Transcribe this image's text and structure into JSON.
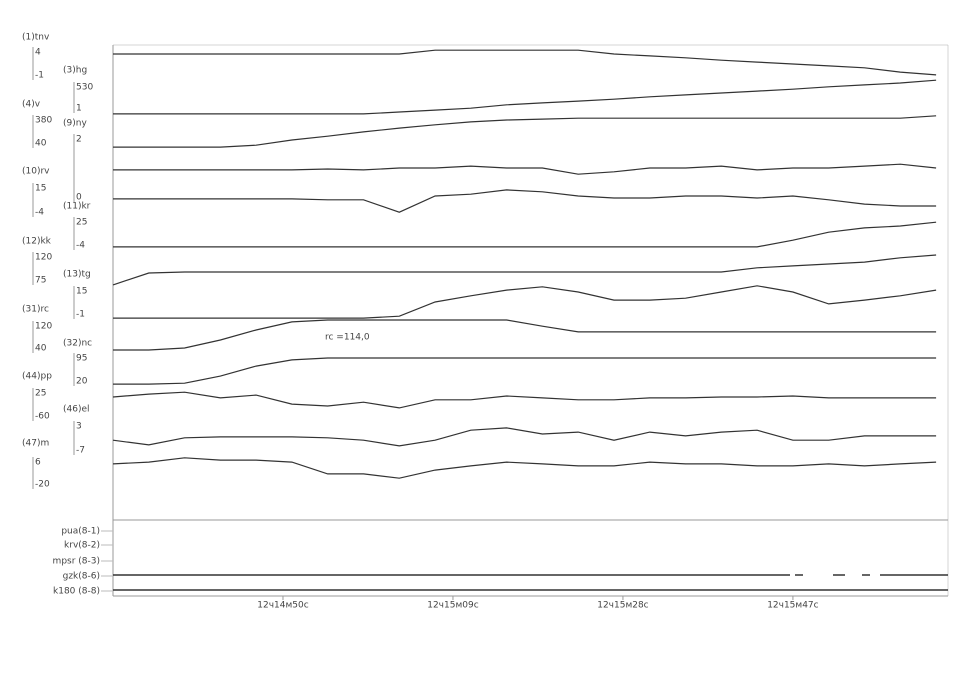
{
  "chart_data": {
    "type": "line",
    "color": "#333333",
    "xlim": [
      44071,
      44164
    ],
    "xticks": [
      {
        "value": 44090,
        "label": "12ч14м50с"
      },
      {
        "value": 44109,
        "label": "12ч15м09с"
      },
      {
        "value": 44128,
        "label": "12ч15м28с"
      },
      {
        "value": 44147,
        "label": "12ч15м47с"
      }
    ],
    "ylim": [
      0,
      100
    ],
    "x": [
      44071,
      44075,
      44079,
      44083,
      44087,
      44091,
      44095,
      44099,
      44103,
      44107,
      44111,
      44115,
      44119,
      44123,
      44127,
      44131,
      44135,
      44139,
      44143,
      44147,
      44151,
      44155,
      44159,
      44163
    ],
    "series": [
      {
        "name": "(1)tnv",
        "scale": [
          "4",
          "-1"
        ],
        "values": [
          98.1,
          98.1,
          98.1,
          98.1,
          98.1,
          98.1,
          98.1,
          98.1,
          98.1,
          98.9,
          98.9,
          98.9,
          98.9,
          98.9,
          98.1,
          97.7,
          97.3,
          96.8,
          96.4,
          96.0,
          95.6,
          95.2,
          94.3,
          93.7
        ]
      },
      {
        "name": "(3)hg",
        "scale": [
          "530",
          "1"
        ],
        "values": [
          85.5,
          85.5,
          85.5,
          85.5,
          85.5,
          85.5,
          85.5,
          85.5,
          85.9,
          86.3,
          86.7,
          87.4,
          87.8,
          88.2,
          88.6,
          89.1,
          89.5,
          89.9,
          90.3,
          90.7,
          91.2,
          91.6,
          92.0,
          92.6
        ]
      },
      {
        "name": "(4)v",
        "scale": [
          "380",
          "40"
        ],
        "values": [
          78.5,
          78.5,
          78.5,
          78.5,
          78.9,
          80.0,
          80.8,
          81.7,
          82.5,
          83.2,
          83.8,
          84.2,
          84.4,
          84.6,
          84.6,
          84.6,
          84.6,
          84.6,
          84.6,
          84.6,
          84.6,
          84.6,
          84.6,
          85.1
        ]
      },
      {
        "name": "(9)ny",
        "scale": [
          "2",
          "0"
        ],
        "values": [
          73.7,
          73.7,
          73.7,
          73.7,
          73.7,
          73.7,
          73.9,
          73.7,
          74.1,
          74.1,
          74.5,
          74.1,
          74.1,
          72.8,
          73.3,
          74.1,
          74.1,
          74.5,
          73.7,
          74.1,
          74.1,
          74.5,
          74.9,
          74.1
        ]
      },
      {
        "name": "(10)rv",
        "scale": [
          "15",
          "-4"
        ],
        "values": [
          67.6,
          67.6,
          67.6,
          67.6,
          67.6,
          67.6,
          67.4,
          67.4,
          64.8,
          68.2,
          68.6,
          69.5,
          69.1,
          68.2,
          67.8,
          67.8,
          68.2,
          68.2,
          67.8,
          68.2,
          67.4,
          66.5,
          66.1,
          66.1
        ]
      },
      {
        "name": "(11)kr",
        "scale": [
          "25",
          "-4"
        ],
        "values": [
          57.5,
          57.5,
          57.5,
          57.5,
          57.5,
          57.5,
          57.5,
          57.5,
          57.5,
          57.5,
          57.5,
          57.5,
          57.5,
          57.5,
          57.5,
          57.5,
          57.5,
          57.5,
          57.5,
          58.9,
          60.6,
          61.5,
          61.9,
          62.7
        ]
      },
      {
        "name": "(12)kk",
        "scale": [
          "120",
          "75"
        ],
        "values": [
          49.5,
          52.0,
          52.2,
          52.2,
          52.2,
          52.2,
          52.2,
          52.2,
          52.2,
          52.2,
          52.2,
          52.2,
          52.2,
          52.2,
          52.2,
          52.2,
          52.2,
          52.2,
          53.1,
          53.5,
          53.9,
          54.3,
          55.2,
          55.8
        ]
      },
      {
        "name": "(13)tg",
        "scale": [
          "15",
          "-1"
        ],
        "values": [
          42.5,
          42.5,
          42.5,
          42.5,
          42.5,
          42.5,
          42.5,
          42.5,
          42.9,
          45.9,
          47.2,
          48.4,
          49.1,
          48.0,
          46.3,
          46.3,
          46.7,
          48.0,
          49.3,
          48.0,
          45.5,
          46.3,
          47.2,
          48.4
        ]
      },
      {
        "name": "(31)rc",
        "scale": [
          "120",
          "40"
        ],
        "values": [
          35.8,
          35.8,
          36.2,
          37.9,
          40.0,
          41.7,
          42.1,
          42.1,
          42.1,
          42.1,
          42.1,
          42.1,
          40.8,
          39.6,
          39.6,
          39.6,
          39.6,
          39.6,
          39.6,
          39.6,
          39.6,
          39.6,
          39.6,
          39.6
        ]
      },
      {
        "name": "(32)nc",
        "scale": [
          "95",
          "20"
        ],
        "values": [
          28.6,
          28.6,
          28.8,
          30.3,
          32.4,
          33.7,
          34.1,
          34.1,
          34.1,
          34.1,
          34.1,
          34.1,
          34.1,
          34.1,
          34.1,
          34.1,
          34.1,
          34.1,
          34.1,
          34.1,
          34.1,
          34.1,
          34.1,
          34.1
        ]
      },
      {
        "name": "(44)pp",
        "scale": [
          "25",
          "-60"
        ],
        "values": [
          25.9,
          26.5,
          26.9,
          25.7,
          26.3,
          24.4,
          24.0,
          24.8,
          23.6,
          25.3,
          25.3,
          26.1,
          25.7,
          25.3,
          25.3,
          25.7,
          25.7,
          25.9,
          25.9,
          26.1,
          25.7,
          25.7,
          25.7,
          25.7
        ]
      },
      {
        "name": "(46)el",
        "scale": [
          "3",
          "-7"
        ],
        "values": [
          16.8,
          15.8,
          17.3,
          17.5,
          17.5,
          17.5,
          17.3,
          16.8,
          15.6,
          16.8,
          18.9,
          19.4,
          18.1,
          18.5,
          16.8,
          18.5,
          17.7,
          18.5,
          18.9,
          16.8,
          16.8,
          17.7,
          17.7,
          17.7
        ]
      },
      {
        "name": "(47)m",
        "scale": [
          "6",
          "-20"
        ],
        "values": [
          11.8,
          12.2,
          13.1,
          12.6,
          12.6,
          12.2,
          9.7,
          9.7,
          8.8,
          10.5,
          11.4,
          12.2,
          11.8,
          11.4,
          11.4,
          12.2,
          11.8,
          11.8,
          11.4,
          11.4,
          11.8,
          11.4,
          11.8,
          12.2
        ]
      }
    ],
    "annotation": "rc =114,0",
    "discrete_channels": [
      "pua(8-1)",
      "krv(8-2)",
      "mpsr (8-3)",
      "gzk(8-6)",
      "k180 (8-8)"
    ]
  }
}
